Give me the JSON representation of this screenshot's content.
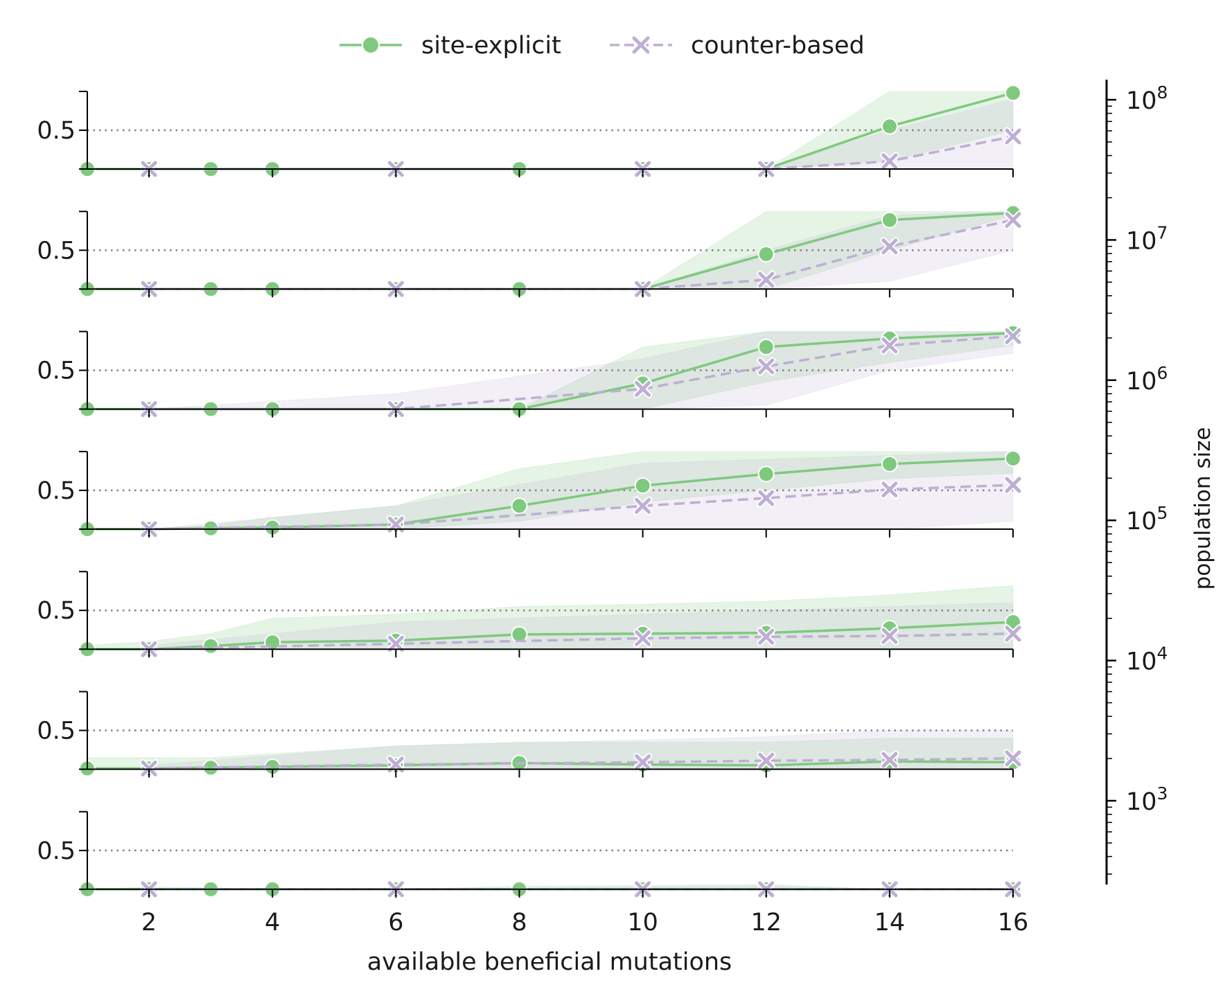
{
  "legend": {
    "site_explicit": "site-explicit",
    "counter_based": "counter-based"
  },
  "x_axis_label": "available beneficial mutations",
  "right_axis_label": "population size",
  "y_tick_label": "0.5",
  "colors": {
    "site_explicit": "#7fc97f",
    "counter_based": "#beaed4",
    "reference_line": "#808080",
    "axis": "#000000"
  },
  "chart_data": {
    "type": "line",
    "xlabel": "available beneficial mutations",
    "x_ticks": [
      "2",
      "4",
      "6",
      "8",
      "10",
      "12",
      "14",
      "16"
    ],
    "x_range": [
      1,
      16
    ],
    "y_range": [
      0,
      1
    ],
    "y_ticks": [
      "0.5"
    ],
    "reference_line_y": 0.5,
    "legend_position": "top-center",
    "right_axis": {
      "label": "population size",
      "scale": "log",
      "ticks": [
        {
          "mantissa": "10",
          "exponent": "8"
        },
        {
          "mantissa": "10",
          "exponent": "7"
        },
        {
          "mantissa": "10",
          "exponent": "6"
        },
        {
          "mantissa": "10",
          "exponent": "5"
        },
        {
          "mantissa": "10",
          "exponent": "4"
        },
        {
          "mantissa": "10",
          "exponent": "3"
        }
      ]
    },
    "panels": [
      {
        "series": [
          {
            "name": "site-explicit",
            "x": [
              1,
              2,
              3,
              4,
              6,
              8,
              10,
              12,
              14,
              16
            ],
            "y": [
              0,
              0,
              0,
              0,
              0,
              0,
              0,
              0,
              0.55,
              0.98
            ],
            "lower": [
              0,
              0,
              0,
              0,
              0,
              0,
              0,
              0,
              0.1,
              0.5
            ],
            "upper": [
              0,
              0,
              0,
              0,
              0,
              0,
              0,
              0,
              1,
              1
            ]
          },
          {
            "name": "counter-based",
            "x": [
              2,
              6,
              10,
              12,
              14,
              16
            ],
            "y": [
              0,
              0,
              0,
              0,
              0.1,
              0.42
            ],
            "lower": [
              0,
              0,
              0,
              0,
              0,
              0
            ],
            "upper": [
              0,
              0,
              0,
              0,
              0.5,
              0.9
            ]
          }
        ]
      },
      {
        "series": [
          {
            "name": "site-explicit",
            "x": [
              1,
              2,
              3,
              4,
              6,
              8,
              10,
              12,
              14,
              16
            ],
            "y": [
              0,
              0,
              0,
              0,
              0,
              0,
              0,
              0.45,
              0.89,
              0.98
            ],
            "lower": [
              0,
              0,
              0,
              0,
              0,
              0,
              0,
              0,
              0.5,
              0.95
            ],
            "upper": [
              0,
              0,
              0,
              0,
              0,
              0,
              0,
              1,
              1,
              1
            ]
          },
          {
            "name": "counter-based",
            "x": [
              2,
              6,
              10,
              12,
              14,
              16
            ],
            "y": [
              0,
              0,
              0,
              0.12,
              0.55,
              0.89
            ],
            "lower": [
              0,
              0,
              0,
              0,
              0.1,
              0.5
            ],
            "upper": [
              0,
              0,
              0,
              0.5,
              0.95,
              1
            ]
          }
        ]
      },
      {
        "series": [
          {
            "name": "site-explicit",
            "x": [
              1,
              2,
              3,
              4,
              6,
              8,
              10,
              12,
              14,
              16
            ],
            "y": [
              0,
              0,
              0,
              0,
              0,
              0,
              0.33,
              0.8,
              0.91,
              0.98
            ],
            "lower": [
              0,
              0,
              0,
              0,
              0,
              0,
              0,
              0.35,
              0.6,
              0.82
            ],
            "upper": [
              0,
              0,
              0,
              0,
              0,
              0,
              0.8,
              1,
              1,
              1
            ]
          },
          {
            "name": "counter-based",
            "x": [
              2,
              6,
              10,
              12,
              14,
              16
            ],
            "y": [
              0,
              0,
              0.26,
              0.55,
              0.82,
              0.94
            ],
            "lower": [
              0,
              0,
              0,
              0.05,
              0.5,
              0.72
            ],
            "upper": [
              0,
              0.2,
              0.65,
              1,
              1,
              1
            ]
          }
        ]
      },
      {
        "series": [
          {
            "name": "site-explicit",
            "x": [
              1,
              2,
              3,
              4,
              6,
              8,
              10,
              12,
              14,
              16
            ],
            "y": [
              0,
              0,
              0.01,
              0.02,
              0.06,
              0.3,
              0.56,
              0.71,
              0.84,
              0.91
            ],
            "lower": [
              0,
              0,
              0,
              0,
              0,
              0.1,
              0.35,
              0.5,
              0.65,
              0.72
            ],
            "upper": [
              0,
              0,
              0.05,
              0.15,
              0.3,
              0.78,
              1,
              1,
              1,
              1
            ]
          },
          {
            "name": "counter-based",
            "x": [
              2,
              6,
              10,
              12,
              14,
              16
            ],
            "y": [
              0,
              0.06,
              0.3,
              0.4,
              0.51,
              0.57
            ],
            "lower": [
              0,
              0,
              0,
              0,
              0,
              0.1
            ],
            "upper": [
              0,
              0.3,
              0.85,
              0.9,
              0.95,
              1
            ]
          }
        ]
      },
      {
        "series": [
          {
            "name": "site-explicit",
            "x": [
              1,
              2,
              3,
              4,
              6,
              8,
              10,
              12,
              14,
              16
            ],
            "y": [
              0,
              0,
              0.04,
              0.09,
              0.11,
              0.19,
              0.2,
              0.21,
              0.27,
              0.35
            ],
            "lower": [
              0,
              0,
              0,
              0,
              0,
              0,
              0,
              0,
              0,
              0
            ],
            "upper": [
              0.05,
              0.1,
              0.2,
              0.4,
              0.45,
              0.55,
              0.58,
              0.62,
              0.7,
              0.82
            ]
          },
          {
            "name": "counter-based",
            "x": [
              2,
              6,
              10,
              12,
              14,
              16
            ],
            "y": [
              0,
              0.07,
              0.14,
              0.16,
              0.17,
              0.2
            ],
            "lower": [
              0,
              0,
              0,
              0,
              0,
              0
            ],
            "upper": [
              0.05,
              0.35,
              0.45,
              0.5,
              0.55,
              0.6
            ]
          }
        ]
      },
      {
        "series": [
          {
            "name": "site-explicit",
            "x": [
              1,
              2,
              3,
              4,
              6,
              8,
              10,
              12,
              14,
              16
            ],
            "y": [
              0.01,
              0.01,
              0.02,
              0.03,
              0.05,
              0.08,
              0.06,
              0.05,
              0.1,
              0.09
            ],
            "lower": [
              0,
              0,
              0,
              0,
              0,
              0,
              0,
              0,
              0,
              0
            ],
            "upper": [
              0.15,
              0.15,
              0.15,
              0.2,
              0.3,
              0.35,
              0.35,
              0.35,
              0.4,
              0.4
            ]
          },
          {
            "name": "counter-based",
            "x": [
              2,
              6,
              10,
              12,
              14,
              16
            ],
            "y": [
              0.01,
              0.06,
              0.09,
              0.11,
              0.12,
              0.14
            ],
            "lower": [
              0,
              0,
              0,
              0,
              0,
              0
            ],
            "upper": [
              0.05,
              0.3,
              0.38,
              0.42,
              0.5,
              0.5
            ]
          }
        ]
      },
      {
        "series": [
          {
            "name": "site-explicit",
            "x": [
              1,
              2,
              3,
              4,
              6,
              8,
              10,
              12,
              14,
              16
            ],
            "y": [
              0,
              0,
              0,
              0,
              0,
              0,
              0,
              0,
              0,
              0
            ],
            "lower": [
              0,
              0,
              0,
              0,
              0,
              0,
              0,
              0,
              0,
              0
            ],
            "upper": [
              0,
              0.03,
              0.02,
              0,
              0,
              0.04,
              0.05,
              0.06,
              0,
              0
            ]
          },
          {
            "name": "counter-based",
            "x": [
              2,
              6,
              10,
              12,
              14,
              16
            ],
            "y": [
              0,
              0,
              0,
              0,
              0,
              0
            ],
            "lower": [
              0,
              0,
              0,
              0,
              0,
              0
            ],
            "upper": [
              0,
              0,
              0.03,
              0.04,
              0,
              0
            ]
          }
        ]
      }
    ]
  }
}
